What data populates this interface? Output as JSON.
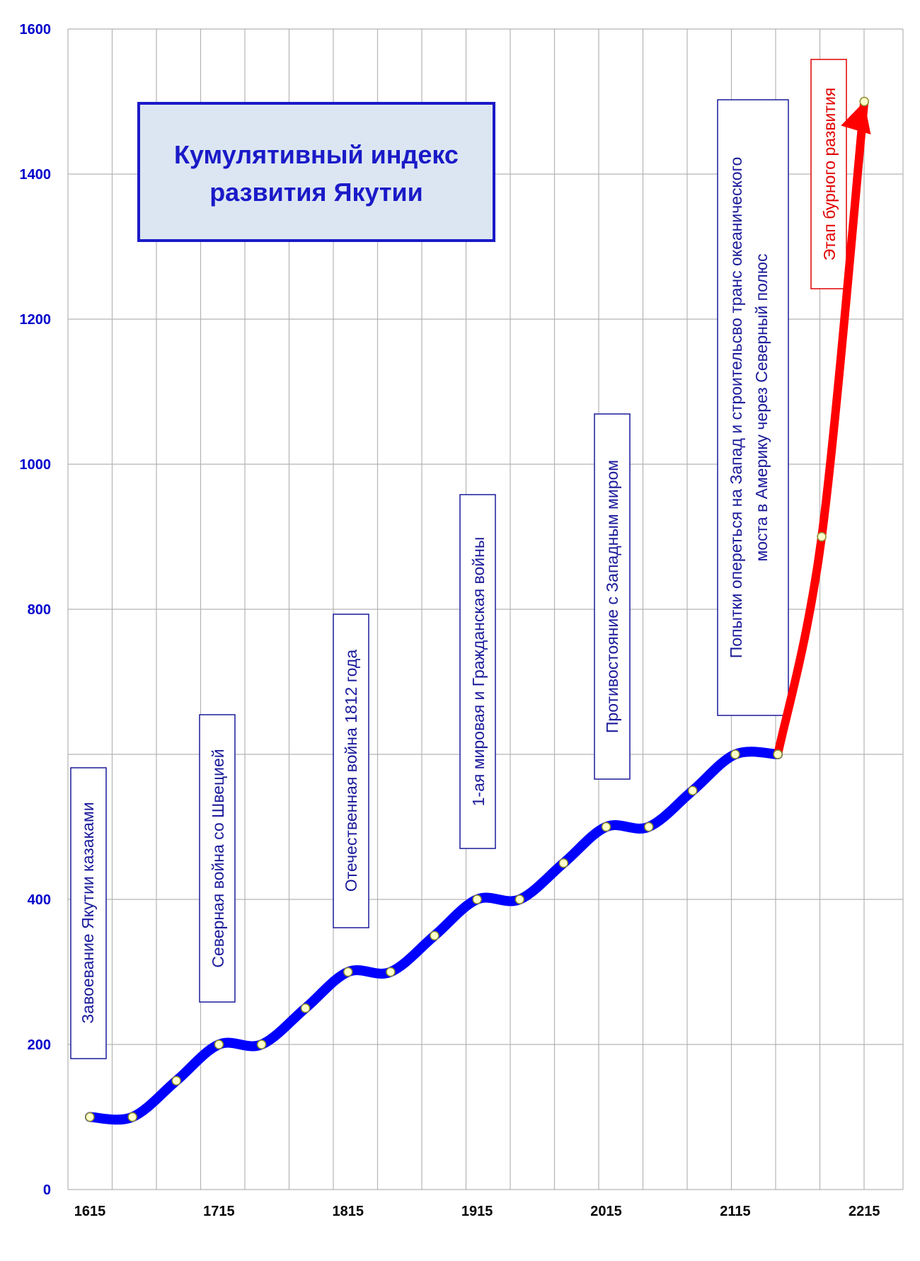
{
  "chart_data": {
    "type": "line",
    "title_lines": [
      "Кумулятивный индекс",
      "развития Якутии"
    ],
    "xlabel": "",
    "ylabel": "",
    "xlim": [
      1598,
      2245
    ],
    "ylim": [
      0,
      1600
    ],
    "y_ticks": [
      0,
      200,
      400,
      800,
      1000,
      1200,
      1400,
      1600
    ],
    "y_ticks_all": [
      0,
      200,
      400,
      600,
      800,
      1000,
      1200,
      1400,
      1600
    ],
    "x_ticks": [
      1615,
      1715,
      1815,
      1915,
      2015,
      2115,
      2215
    ],
    "grid": true,
    "series": [
      {
        "color": "#0000ff",
        "x": [
          1615,
          1648,
          1682,
          1715,
          1748,
          1782,
          1815,
          1848,
          1882,
          1915,
          1948,
          1982,
          2015,
          2048,
          2082,
          2115,
          2148
        ],
        "y": [
          100,
          100,
          150,
          200,
          200,
          250,
          300,
          300,
          350,
          400,
          400,
          450,
          500,
          500,
          550,
          600,
          600
        ]
      },
      {
        "color": "#ff0000",
        "x": [
          2148,
          2182,
          2215
        ],
        "y": [
          600,
          900,
          1500
        ]
      }
    ],
    "annotations": [
      {
        "text": "Завоевание Якутии казаками",
        "color": "#1a1a9a"
      },
      {
        "text": "Северная война со Швецией",
        "color": "#1a1a9a"
      },
      {
        "text": "Отечественная война 1812 года",
        "color": "#1a1a9a"
      },
      {
        "text": "1-ая мировая  и Гражданская войны",
        "color": "#1a1a9a"
      },
      {
        "text": "Противостояние с Западным миром",
        "color": "#1a1a9a"
      },
      {
        "lines": [
          "Попытки опереться на  Запад и строительсво транс океанического",
          "моста в Америку через Северный полюс"
        ],
        "color": "#1a1a9a"
      },
      {
        "text": "Этап бурного развития",
        "color": "#e00000"
      }
    ],
    "colors": {
      "axis_labels": "#0000cc",
      "grid": "#b3b3b3",
      "title_border": "#1a1ac8",
      "title_fill": "#dce6f2"
    }
  }
}
